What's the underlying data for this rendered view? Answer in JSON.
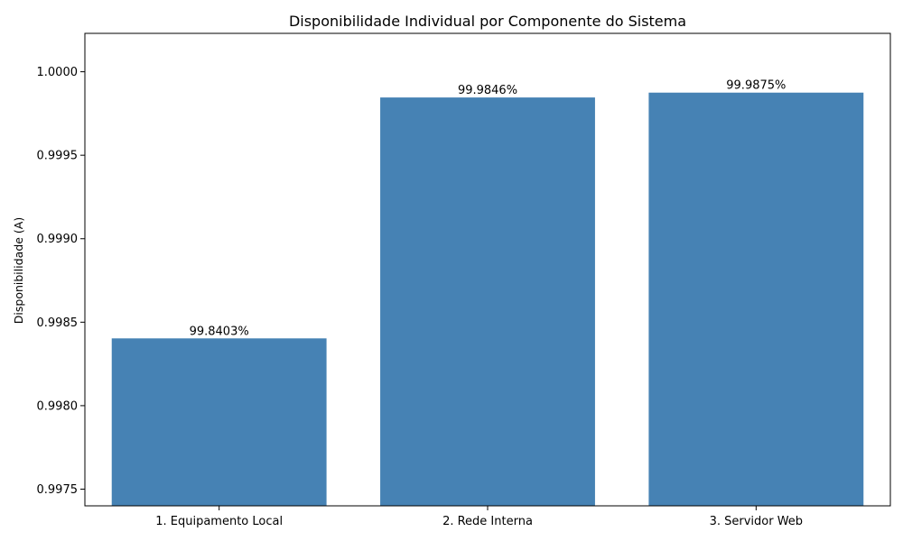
{
  "chart_data": {
    "type": "bar",
    "title": "Disponibilidade Individual por Componente do Sistema",
    "xlabel": "",
    "ylabel": "Disponibilidade (A)",
    "categories": [
      "1. Equipamento Local",
      "2. Rede Interna",
      "3. Servidor Web"
    ],
    "values": [
      0.998403,
      0.999846,
      0.999875
    ],
    "data_labels": [
      "99.8403%",
      "99.9846%",
      "99.9875%"
    ],
    "ylim": [
      0.9974,
      1.00023
    ],
    "yticks": [
      0.9975,
      0.998,
      0.9985,
      0.999,
      0.9995,
      1.0
    ],
    "ytick_labels": [
      "0.9975",
      "0.9980",
      "0.9985",
      "0.9990",
      "0.9995",
      "1.0000"
    ],
    "bar_color": "#4682b4",
    "grid": false,
    "legend": "none"
  }
}
